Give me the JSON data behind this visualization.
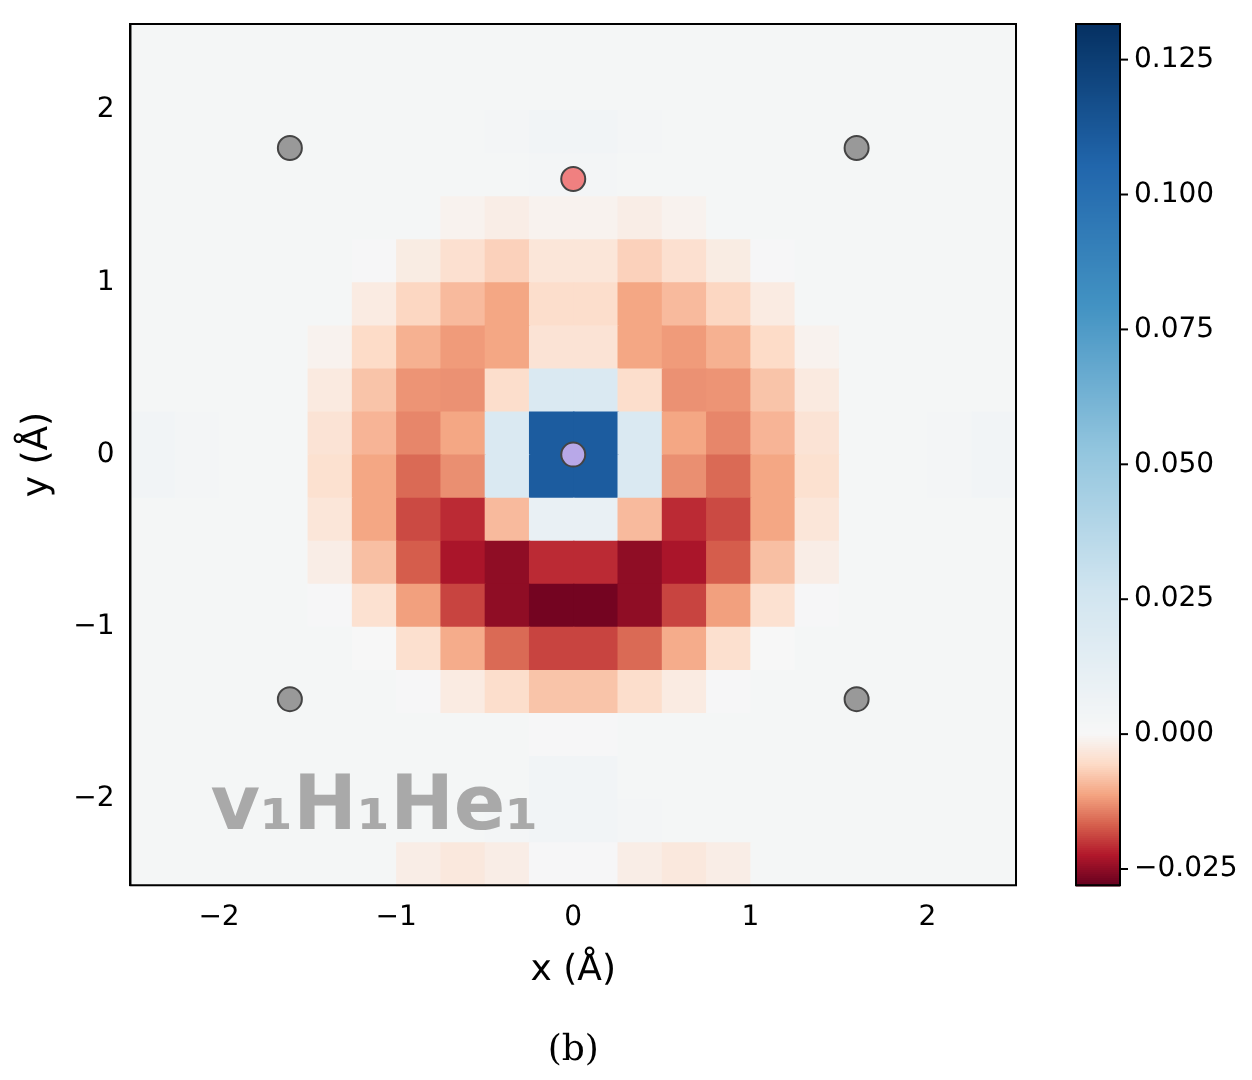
{
  "chart_data": {
    "type": "heatmap",
    "xlabel": "x (Å)",
    "ylabel": "y (Å)",
    "annotations": [
      "v₁H₁He₁",
      "(b)"
    ],
    "xlim": [
      -2.5,
      2.5
    ],
    "ylim": [
      -2.5,
      2.5
    ],
    "xticks": [
      {
        "value": -2,
        "label": "−2"
      },
      {
        "value": -1,
        "label": "−1"
      },
      0,
      1,
      2
    ],
    "yticks": [
      {
        "value": -2,
        "label": "−2"
      },
      {
        "value": -1,
        "label": "−1"
      },
      0,
      1,
      2
    ],
    "clim": [
      -0.028,
      0.1316
    ],
    "cticks": [
      {
        "value": -0.025,
        "label": "−0.025"
      },
      {
        "value": 0,
        "label": "0.000"
      },
      {
        "value": 0.025,
        "label": "0.025"
      },
      {
        "value": 0.05,
        "label": "0.050"
      },
      {
        "value": 0.075,
        "label": "0.075"
      },
      {
        "value": 0.1,
        "label": "0.100"
      },
      {
        "value": 0.125,
        "label": "0.125"
      }
    ],
    "cells": [
      [
        0.002,
        0.002,
        0.002,
        0.002,
        0.002,
        0.002,
        0.002,
        0.002,
        0.002,
        0.002,
        0.002,
        0.002,
        0.002,
        0.002,
        0.002,
        0.002,
        0.002,
        0.002,
        0.002,
        0.002
      ],
      [
        0.002,
        0.002,
        0.002,
        0.002,
        0.002,
        0.002,
        0.002,
        0.002,
        0.002,
        0.002,
        0.002,
        0.002,
        0.002,
        0.002,
        0.002,
        0.002,
        0.002,
        0.002,
        0.002,
        0.002
      ],
      [
        0.002,
        0.002,
        0.002,
        0.002,
        0.002,
        0.002,
        0.002,
        0.002,
        0.003,
        0.004,
        0.004,
        0.003,
        0.002,
        0.002,
        0.002,
        0.002,
        0.002,
        0.002,
        0.002,
        0.002
      ],
      [
        0.002,
        0.002,
        0.002,
        0.002,
        0.002,
        0.002,
        0.002,
        0.002,
        0.002,
        0.003,
        0.003,
        0.002,
        0.002,
        0.002,
        0.002,
        0.002,
        0.002,
        0.002,
        0.002,
        0.002
      ],
      [
        0.002,
        0.002,
        0.002,
        0.002,
        0.002,
        0.002,
        0.002,
        -0.001,
        -0.002,
        -0.001,
        -0.001,
        -0.002,
        -0.001,
        0.002,
        0.002,
        0.002,
        0.002,
        0.002,
        0.002,
        0.002
      ],
      [
        0.002,
        0.002,
        0.002,
        0.002,
        0.002,
        0.001,
        -0.0023,
        -0.0046,
        -0.0066,
        -0.0035,
        -0.0035,
        -0.0066,
        -0.0046,
        -0.0023,
        0.001,
        0.002,
        0.002,
        0.002,
        0.002,
        0.002
      ],
      [
        0.002,
        0.002,
        0.002,
        0.002,
        0.002,
        -0.0025,
        -0.006,
        -0.009,
        -0.011,
        -0.005,
        -0.005,
        -0.011,
        -0.009,
        -0.006,
        -0.0025,
        0.002,
        0.002,
        0.002,
        0.002,
        0.002
      ],
      [
        0.002,
        0.002,
        0.002,
        0.002,
        -0.001,
        -0.0055,
        -0.01,
        -0.012,
        -0.011,
        -0.004,
        -0.004,
        -0.011,
        -0.012,
        -0.01,
        -0.0055,
        -0.001,
        0.002,
        0.002,
        0.002,
        0.002
      ],
      [
        0.002,
        0.002,
        0.002,
        0.002,
        -0.0027,
        -0.008,
        -0.0126,
        -0.0128,
        -0.005,
        0.02,
        0.02,
        -0.005,
        -0.0128,
        -0.0126,
        -0.008,
        -0.0027,
        0.002,
        0.002,
        0.002,
        0.002
      ],
      [
        0.004,
        0.003,
        0.002,
        0.002,
        -0.004,
        -0.0096,
        -0.0137,
        -0.011,
        0.02,
        0.11,
        0.11,
        0.02,
        -0.011,
        -0.0137,
        -0.0096,
        -0.004,
        0.002,
        0.002,
        0.003,
        0.004
      ],
      [
        0.004,
        0.003,
        0.002,
        0.002,
        -0.0045,
        -0.011,
        -0.016,
        -0.013,
        0.02,
        0.11,
        0.11,
        0.02,
        -0.013,
        -0.016,
        -0.011,
        -0.0045,
        0.002,
        0.002,
        0.003,
        0.004
      ],
      [
        0.002,
        0.002,
        0.002,
        0.002,
        -0.0035,
        -0.011,
        -0.0185,
        -0.021,
        -0.009,
        0.01,
        0.01,
        -0.009,
        -0.021,
        -0.0185,
        -0.011,
        -0.0035,
        0.002,
        0.002,
        0.002,
        0.002
      ],
      [
        0.002,
        0.002,
        0.002,
        0.002,
        -0.002,
        -0.0085,
        -0.017,
        -0.023,
        -0.025,
        -0.021,
        -0.021,
        -0.025,
        -0.023,
        -0.017,
        -0.0085,
        -0.002,
        0.002,
        0.002,
        0.002,
        0.002
      ],
      [
        0.002,
        0.002,
        0.002,
        0.002,
        0.001,
        -0.0044,
        -0.0116,
        -0.019,
        -0.025,
        -0.027,
        -0.027,
        -0.025,
        -0.019,
        -0.0116,
        -0.0044,
        0.001,
        0.002,
        0.002,
        0.002,
        0.002
      ],
      [
        0.002,
        0.002,
        0.002,
        0.002,
        0.002,
        0,
        -0.0047,
        -0.0105,
        -0.016,
        -0.019,
        -0.019,
        -0.016,
        -0.0105,
        -0.0047,
        0,
        0.002,
        0.002,
        0.002,
        0.002,
        0.002
      ],
      [
        0.002,
        0.002,
        0.002,
        0.002,
        0.002,
        0.002,
        0.001,
        -0.0025,
        -0.005,
        -0.008,
        -0.008,
        -0.005,
        -0.0025,
        0.001,
        0.002,
        0.002,
        0.002,
        0.002,
        0.002,
        0.002
      ],
      [
        0.002,
        0.002,
        0.002,
        0.002,
        0.002,
        0.002,
        0.002,
        0.002,
        0.002,
        0.001,
        0.001,
        0.002,
        0.002,
        0.002,
        0.002,
        0.002,
        0.002,
        0.002,
        0.002,
        0.002
      ],
      [
        0.002,
        0.002,
        0.002,
        0.002,
        0.002,
        0.002,
        0.002,
        0.002,
        0.002,
        0.004,
        0.004,
        0.002,
        0.002,
        0.002,
        0.002,
        0.002,
        0.002,
        0.002,
        0.002,
        0.002
      ],
      [
        0.002,
        0.002,
        0.002,
        0.002,
        0.002,
        0.002,
        0.002,
        0.002,
        0.003,
        0.004,
        0.004,
        0.003,
        0.002,
        0.002,
        0.002,
        0.002,
        0.002,
        0.002,
        0.002,
        0.002
      ],
      [
        0.002,
        0.002,
        0.002,
        0.002,
        0.002,
        0.002,
        -0.002,
        -0.003,
        -0.002,
        0.001,
        0.001,
        -0.002,
        -0.003,
        -0.002,
        0.002,
        0.002,
        0.002,
        0.002,
        0.002,
        0.002
      ]
    ],
    "series": [
      {
        "type": "scatter",
        "x": [
          -1.6,
          1.6,
          0,
          0,
          -1.6,
          1.6
        ],
        "values": [
          1.78,
          1.78,
          1.6,
          0,
          -1.42,
          -1.42
        ],
        "colors": [
          "#999999",
          "#999999",
          "#f08080",
          "#b8a8e8",
          "#999999",
          "#999999"
        ]
      }
    ],
    "marker": "circle",
    "grid": false,
    "legend": false
  }
}
